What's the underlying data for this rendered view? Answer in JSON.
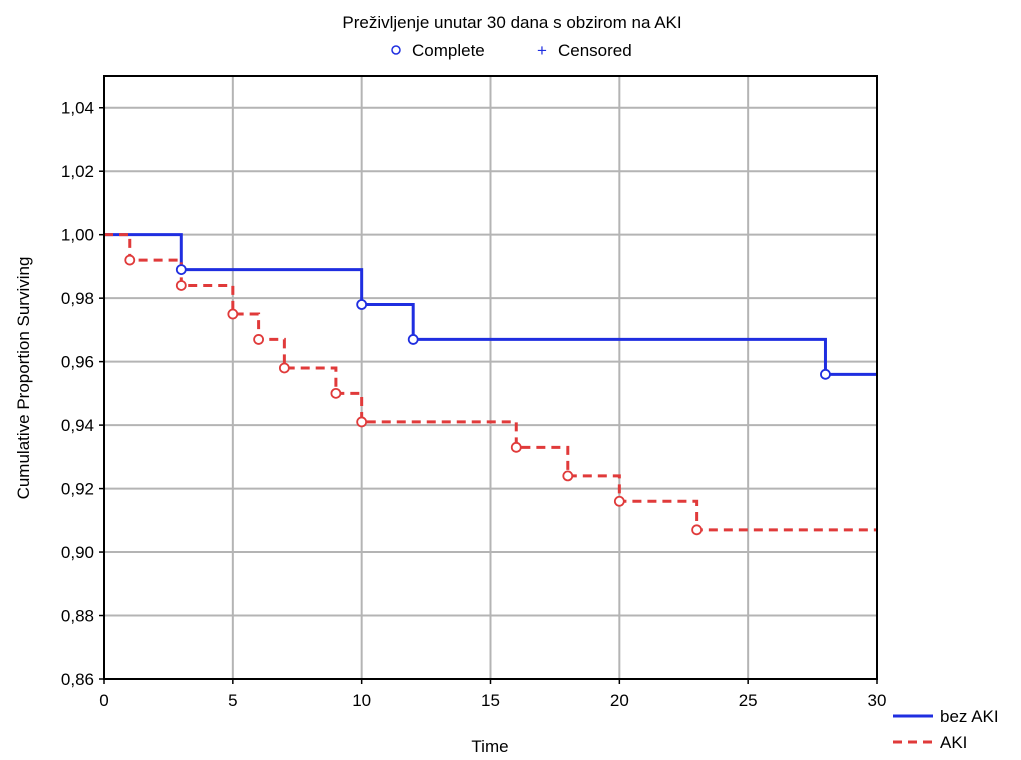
{
  "chart_data": {
    "type": "line",
    "subtype": "step",
    "title": "Preživljenje unutar 30 dana s obzirom na AKI",
    "marker_legend": [
      {
        "label": "Complete",
        "marker": "circle"
      },
      {
        "label": "Censored",
        "marker": "plus"
      }
    ],
    "xlabel": "Time",
    "ylabel": "Cumulative Proportion Surviving",
    "xlim": [
      0,
      30
    ],
    "ylim": [
      0.86,
      1.05
    ],
    "xticks": [
      0,
      5,
      10,
      15,
      20,
      25,
      30
    ],
    "xtick_labels": [
      "0",
      "5",
      "10",
      "15",
      "20",
      "25",
      "30"
    ],
    "yticks": [
      0.86,
      0.88,
      0.9,
      0.92,
      0.94,
      0.96,
      0.98,
      1.0,
      1.02,
      1.04
    ],
    "ytick_labels": [
      "0,86",
      "0,88",
      "0,90",
      "0,92",
      "0,94",
      "0,96",
      "0,98",
      "1,00",
      "1,02",
      "1,04"
    ],
    "grid": true,
    "legend_position": "bottom-right",
    "series": [
      {
        "name": "bez AKI",
        "color": "#1f2ee0",
        "style": "solid",
        "x": [
          0,
          3,
          10,
          12,
          28
        ],
        "y": [
          1.0,
          0.989,
          0.978,
          0.967,
          0.956
        ],
        "end_x": 30
      },
      {
        "name": "AKI",
        "color": "#e03a3a",
        "style": "dashed",
        "x": [
          0,
          1,
          3,
          5,
          6,
          7,
          9,
          10,
          16,
          18,
          20,
          23
        ],
        "y": [
          1.0,
          0.992,
          0.984,
          0.975,
          0.967,
          0.958,
          0.95,
          0.941,
          0.933,
          0.924,
          0.916,
          0.907
        ],
        "end_x": 30
      }
    ]
  }
}
